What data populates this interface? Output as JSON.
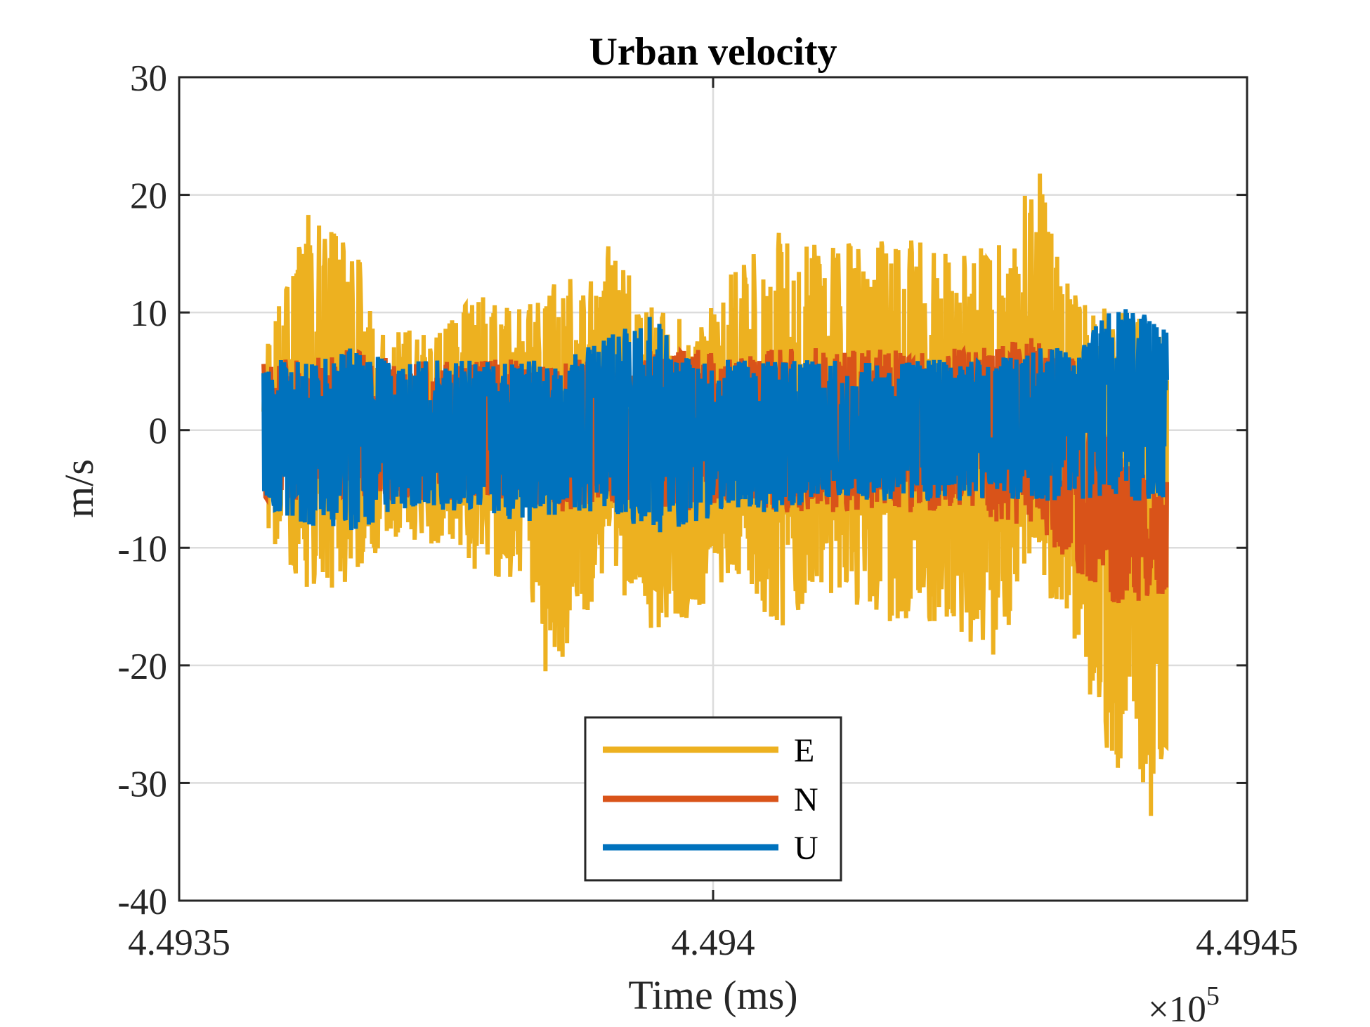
{
  "chart_data": {
    "type": "line",
    "title": "Urban velocity",
    "xlabel": "Time (ms)",
    "ylabel": "m/s",
    "x_exponent_label": "×10",
    "x_exponent": "5",
    "xlim": [
      449350,
      449450
    ],
    "ylim": [
      -40,
      30
    ],
    "x_ticks": [
      449350,
      449400,
      449450
    ],
    "x_tick_labels": [
      "4.4935",
      "4.494",
      "4.4945"
    ],
    "y_ticks": [
      -40,
      -30,
      -20,
      -10,
      0,
      10,
      20,
      30
    ],
    "y_tick_labels": [
      "-40",
      "-30",
      "-20",
      "-10",
      "0",
      "10",
      "20",
      "30"
    ],
    "grid": true,
    "legend_position": "bottom-center",
    "x_range_of_data": [
      449357.9,
      449442.5
    ],
    "series": [
      {
        "name": "E",
        "color": "#EDB120",
        "envelope_x": [
          449358,
          449362,
          449366,
          449370,
          449374,
          449378,
          449382,
          449386,
          449390,
          449394,
          449398,
          449402,
          449406,
          449410,
          449414,
          449418,
          449422,
          449426,
          449430,
          449434,
          449438,
          449442
        ],
        "envelope_upper": [
          8,
          18,
          16,
          9,
          8,
          12,
          11,
          13,
          16,
          11,
          9,
          14,
          17,
          16,
          16,
          17,
          15,
          16,
          22,
          13,
          10,
          10
        ],
        "envelope_lower": [
          -9,
          -14,
          -13,
          -9,
          -10,
          -12,
          -13,
          -20,
          -12,
          -17,
          -16,
          -12,
          -17,
          -14,
          -16,
          -17,
          -16,
          -20,
          -12,
          -18,
          -32,
          -30
        ],
        "peaks": [
          {
            "x": 449362.1,
            "y": 18.3
          },
          {
            "x": 449384.3,
            "y": -20.5
          },
          {
            "x": 449430.6,
            "y": 21.8
          },
          {
            "x": 449441.0,
            "y": -32.8
          }
        ]
      },
      {
        "name": "N",
        "color": "#D95319",
        "envelope_x": [
          449358,
          449362,
          449366,
          449370,
          449374,
          449378,
          449382,
          449386,
          449390,
          449394,
          449398,
          449402,
          449406,
          449410,
          449414,
          449418,
          449422,
          449426,
          449430,
          449434,
          449438,
          449442
        ],
        "envelope_upper": [
          6,
          6,
          7,
          6,
          6,
          6,
          6,
          6,
          6,
          7,
          7,
          6,
          7,
          7,
          7,
          7,
          7,
          7,
          8,
          6,
          -2,
          -4
        ],
        "envelope_lower": [
          -6,
          -6,
          -6,
          -6,
          -6,
          -6,
          -6,
          -7,
          -6,
          -7,
          -7,
          -6,
          -7,
          -7,
          -7,
          -7,
          -7,
          -8,
          -8,
          -12,
          -15,
          -14
        ]
      },
      {
        "name": "U",
        "color": "#0072BD",
        "envelope_x": [
          449358,
          449362,
          449366,
          449370,
          449374,
          449378,
          449382,
          449386,
          449390,
          449394,
          449398,
          449402,
          449406,
          449410,
          449414,
          449418,
          449422,
          449426,
          449430,
          449434,
          449438,
          449442
        ],
        "envelope_upper": [
          6,
          6,
          7,
          6,
          6,
          6,
          6,
          6,
          8,
          10,
          6,
          6,
          6,
          6,
          6,
          6,
          6,
          6,
          7,
          7,
          11,
          9
        ],
        "envelope_lower": [
          -7,
          -8,
          -9,
          -7,
          -7,
          -7,
          -8,
          -7,
          -7,
          -9,
          -8,
          -7,
          -7,
          -6,
          -6,
          -6,
          -6,
          -6,
          -6,
          -6,
          -6,
          -6
        ]
      }
    ]
  }
}
